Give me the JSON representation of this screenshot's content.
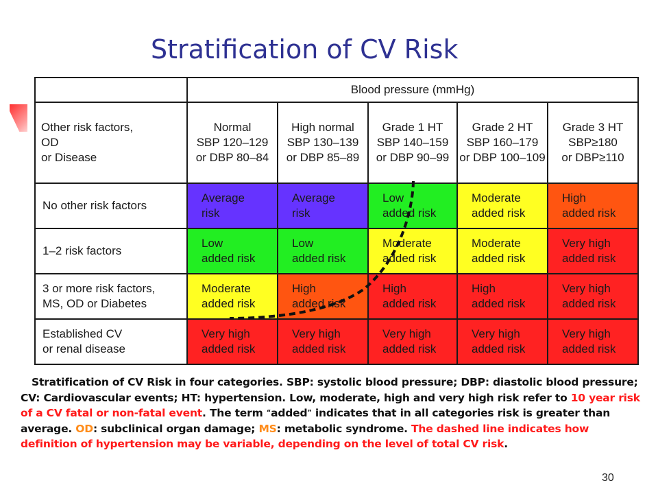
{
  "title": "Stratification of CV Risk",
  "table": {
    "bp_header": "Blood pressure (mmHg)",
    "corner": [
      "Other risk factors,",
      "OD",
      "or Disease"
    ],
    "columns": [
      {
        "name": "Normal",
        "l1": "SBP 120–129",
        "l2": "or DBP 80–84"
      },
      {
        "name": "High normal",
        "l1": "SBP 130–139",
        "l2": "or DBP 85–89"
      },
      {
        "name": "Grade 1 HT",
        "l1": "SBP 140–159",
        "l2": "or DBP 90–99"
      },
      {
        "name": "Grade 2 HT",
        "l1": "SBP 160–179",
        "l2": "or DBP 100–109"
      },
      {
        "name": "Grade 3 HT",
        "l1": "SBP≥180",
        "l2": "or DBP≥110"
      }
    ],
    "rows": [
      {
        "label": [
          "No other risk factors",
          ""
        ],
        "cells": [
          {
            "l1": "Average",
            "l2": "risk",
            "color": "#6633ff"
          },
          {
            "l1": "Average",
            "l2": "risk",
            "color": "#6633ff"
          },
          {
            "l1": "Low",
            "l2": "added risk",
            "color": "#22ee22"
          },
          {
            "l1": "Moderate",
            "l2": "added risk",
            "color": "#ffff22"
          },
          {
            "l1": "High",
            "l2": "added risk",
            "color": "#ff5511"
          }
        ]
      },
      {
        "label": [
          "1–2 risk factors",
          ""
        ],
        "cells": [
          {
            "l1": "Low",
            "l2": "added risk",
            "color": "#22ee22"
          },
          {
            "l1": "Low",
            "l2": "added risk",
            "color": "#22ee22"
          },
          {
            "l1": "Moderate",
            "l2": "added risk",
            "color": "#ffff22"
          },
          {
            "l1": "Moderate",
            "l2": "added risk",
            "color": "#ffff22"
          },
          {
            "l1": "Very high",
            "l2": "added risk",
            "color": "#ff2222"
          }
        ]
      },
      {
        "label": [
          "3 or more risk factors,",
          "MS, OD or Diabetes"
        ],
        "cells": [
          {
            "l1": "Moderate",
            "l2": "added risk",
            "color": "#ffff22"
          },
          {
            "l1": "High",
            "l2": "added risk",
            "color": "#ff5511"
          },
          {
            "l1": "High",
            "l2": "added risk",
            "color": "#ff2222"
          },
          {
            "l1": "High",
            "l2": "added risk",
            "color": "#ff2222"
          },
          {
            "l1": "Very high",
            "l2": "added risk",
            "color": "#ff2222"
          }
        ]
      },
      {
        "label": [
          "Established CV",
          "or renal disease"
        ],
        "cells": [
          {
            "l1": "Very high",
            "l2": "added risk",
            "color": "#ff2222"
          },
          {
            "l1": "Very high",
            "l2": "added risk",
            "color": "#ff2222"
          },
          {
            "l1": "Very high",
            "l2": "added risk",
            "color": "#ff2222"
          },
          {
            "l1": "Very high",
            "l2": "added risk",
            "color": "#ff2222"
          },
          {
            "l1": "Very high",
            "l2": "added risk",
            "color": "#ff2222"
          }
        ]
      }
    ]
  },
  "caption": {
    "p1": "Stratification of CV Risk in four categories. SBP: systolic blood pressure; DBP: diastolic blood pressure; CV: Cardiovascular events; HT: hypertension. Low, moderate, high and very high risk refer to ",
    "p1_red": "10 year risk of a CV fatal or non-fatal event",
    "p2": ". The term ",
    "q_open": "“",
    "added": "added",
    "q_close": "”",
    "p3": " indicates that in all categories risk is greater than average. ",
    "od": "OD",
    "p4": ": subclinical organ damage; ",
    "ms": "MS",
    "p5": ": metabolic syndrome. ",
    "red_sentence": "The dashed line indicates how definition of hypertension may be variable, depending on the level of total CV risk",
    "end": "."
  },
  "page_number": "30",
  "colors": {
    "title": "#2e3192",
    "caption_red": "#ff1a1a",
    "caption_orange": "#ff8c1a"
  }
}
